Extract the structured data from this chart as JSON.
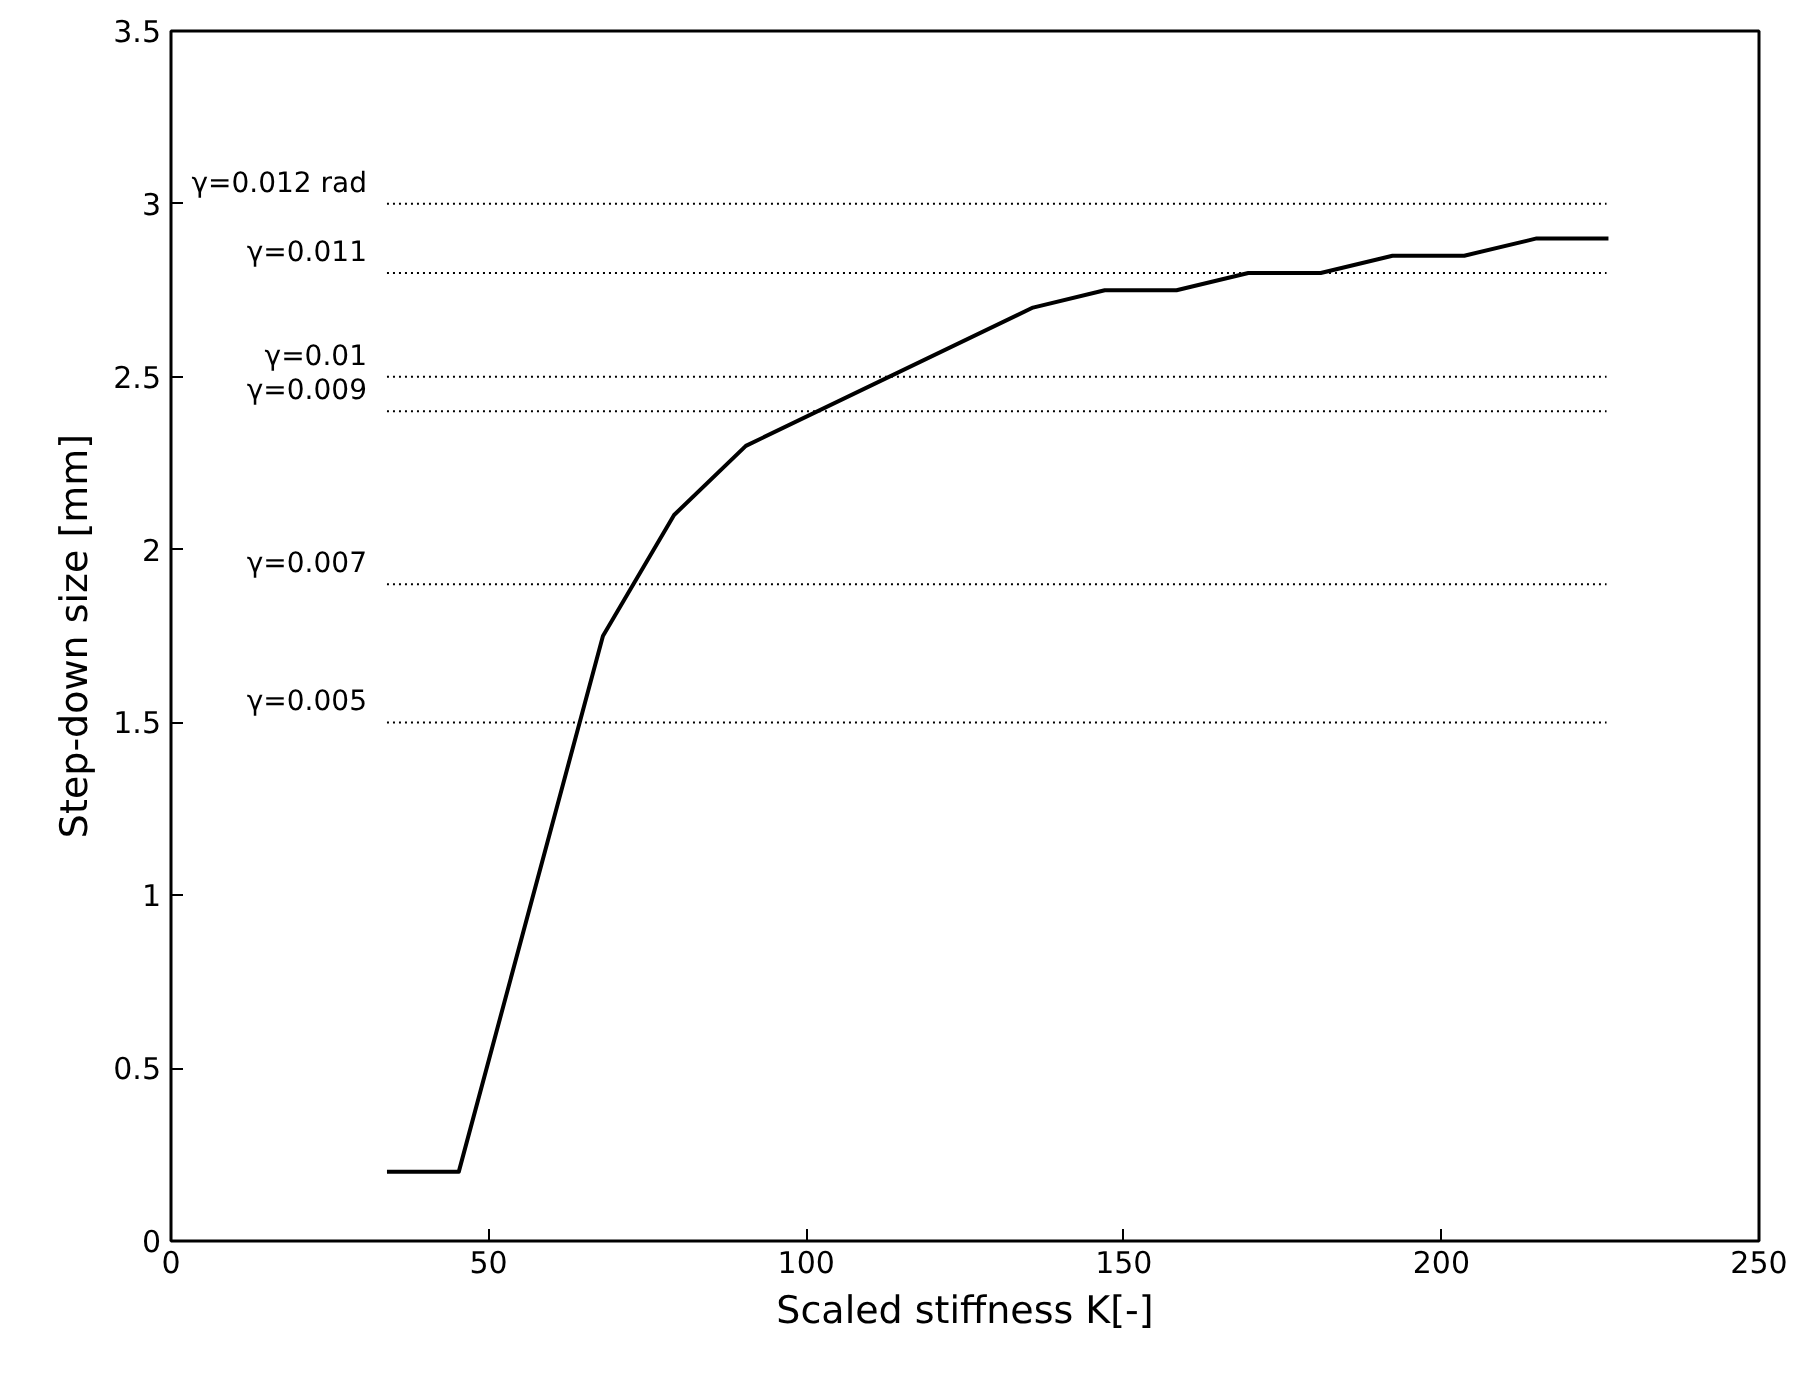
{
  "chart_data": {
    "type": "line",
    "xlabel": "Scaled stiffness K[-]",
    "ylabel": "Step-down size [mm]",
    "xlim": [
      0,
      250
    ],
    "ylim": [
      0,
      3.5
    ],
    "xticks": [
      0,
      50,
      100,
      150,
      200,
      250
    ],
    "yticks": [
      0,
      0.5,
      1,
      1.5,
      2,
      2.5,
      3,
      3.5
    ],
    "grid": false,
    "series": [
      {
        "color": "#000000",
        "line_style": "solid",
        "x": [
          34,
          45.3,
          68,
          79.2,
          90.5,
          135.7,
          147,
          158.3,
          169.6,
          181,
          192.3,
          203.6,
          215,
          226.3
        ],
        "values": [
          0.2,
          0.2,
          1.75,
          2.1,
          2.3,
          2.7,
          2.75,
          2.75,
          2.8,
          2.8,
          2.85,
          2.85,
          2.9,
          2.9
        ]
      },
      {
        "color": "#000000",
        "line_style": "dotted",
        "x": [
          34,
          226
        ],
        "values": [
          3,
          3
        ]
      },
      {
        "color": "#000000",
        "line_style": "dotted",
        "x": [
          34,
          226
        ],
        "values": [
          2.8,
          2.8
        ]
      },
      {
        "color": "#000000",
        "line_style": "dotted",
        "x": [
          34,
          226
        ],
        "values": [
          2.5,
          2.5
        ]
      },
      {
        "color": "#000000",
        "line_style": "dotted",
        "x": [
          34,
          226
        ],
        "values": [
          2.4,
          2.4
        ]
      },
      {
        "color": "#000000",
        "line_style": "dotted",
        "x": [
          34,
          226
        ],
        "values": [
          1.9,
          1.9
        ]
      },
      {
        "color": "#000000",
        "line_style": "dotted",
        "x": [
          34,
          226
        ],
        "values": [
          1.5,
          1.5
        ]
      }
    ],
    "annotations": [
      "γ=0.012 rad",
      "γ=0.011",
      "γ=0.01",
      "γ=0.009",
      "γ=0.007",
      "γ=0.005"
    ]
  }
}
